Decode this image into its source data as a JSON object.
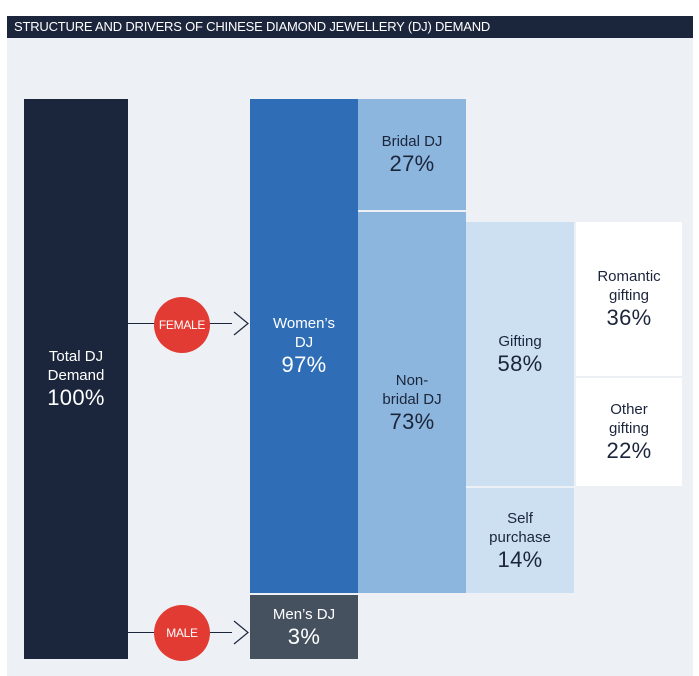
{
  "title": "STRUCTURE AND DRIVERS OF CHINESE DIAMOND JEWELLERY (DJ) DEMAND",
  "nodes": {
    "total": {
      "label_lines": [
        "Total DJ",
        "Demand"
      ],
      "value": "100%"
    },
    "women": {
      "label_lines": [
        "Women’s",
        "DJ"
      ],
      "value": "97%"
    },
    "men": {
      "label_lines": [
        "Men’s DJ"
      ],
      "value": "3%"
    },
    "bridal": {
      "label_lines": [
        "Bridal DJ"
      ],
      "value": "27%"
    },
    "non_bridal": {
      "label_lines": [
        "Non-",
        "bridal DJ"
      ],
      "value": "73%"
    },
    "gifting": {
      "label_lines": [
        "Gifting"
      ],
      "value": "58%"
    },
    "self_purchase": {
      "label_lines": [
        "Self",
        "purchase"
      ],
      "value": "14%"
    },
    "romantic_gifting": {
      "label_lines": [
        "Romantic",
        "gifting"
      ],
      "value": "36%"
    },
    "other_gifting": {
      "label_lines": [
        "Other",
        "gifting"
      ],
      "value": "22%"
    }
  },
  "connectors": {
    "female": "FEMALE",
    "male": "MALE"
  },
  "colors": {
    "navy": "#1b253c",
    "women_blue": "#2f6eb6",
    "mid_blue": "#8cb6de",
    "light_blue": "#cde0f1",
    "men_gray": "#465160",
    "badge_red": "#e23b33",
    "panel_bg": "#edf1f5"
  }
}
